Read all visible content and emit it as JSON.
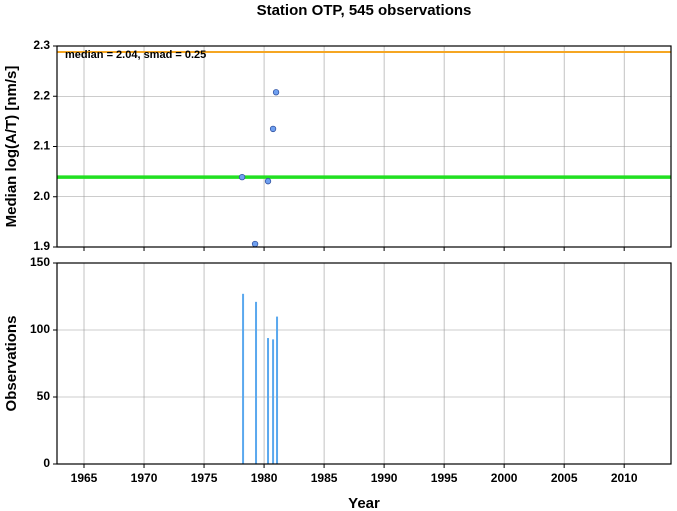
{
  "title": "Station OTP, 545 observations",
  "chart_data": [
    {
      "type": "scatter",
      "ylabel": "Median log(A/T) [nm/s]",
      "x": [
        1978.17,
        1979.25,
        1980.33,
        1980.75,
        1981.0
      ],
      "values": [
        2.039,
        1.906,
        2.031,
        2.135,
        2.208
      ],
      "color": "#6fa0f0",
      "xlim": [
        1962.75,
        2013.9
      ],
      "xticks": [
        1965,
        1970,
        1975,
        1980,
        1985,
        1990,
        1995,
        2000,
        2005,
        2010
      ],
      "ylim": [
        1.9,
        2.3
      ],
      "yticks": [
        1.9,
        {
          "value": 2,
          "label": "2.0"
        },
        2.1,
        2.2,
        2.3
      ],
      "hlines": [
        {
          "value": 2.288,
          "color": "#f5a623"
        },
        {
          "value": 2.039,
          "color": "#22e022"
        }
      ],
      "annotation": "median = 2.04, smad = 0.25",
      "grid": true
    },
    {
      "type": "bar",
      "xlabel": "Year",
      "ylabel": "Observations",
      "x": [
        1978.25,
        1979.33,
        1980.33,
        1980.75,
        1981.08
      ],
      "values": [
        127,
        121,
        94,
        93,
        110
      ],
      "color": "#5aa8ee",
      "xlim": [
        1962.75,
        2013.9
      ],
      "xticks": [
        1965,
        1970,
        1975,
        1980,
        1985,
        1990,
        1995,
        2000,
        2005,
        2010
      ],
      "ylim": [
        0,
        150
      ],
      "yticks": [
        0,
        50,
        100,
        150
      ],
      "grid": true
    }
  ]
}
